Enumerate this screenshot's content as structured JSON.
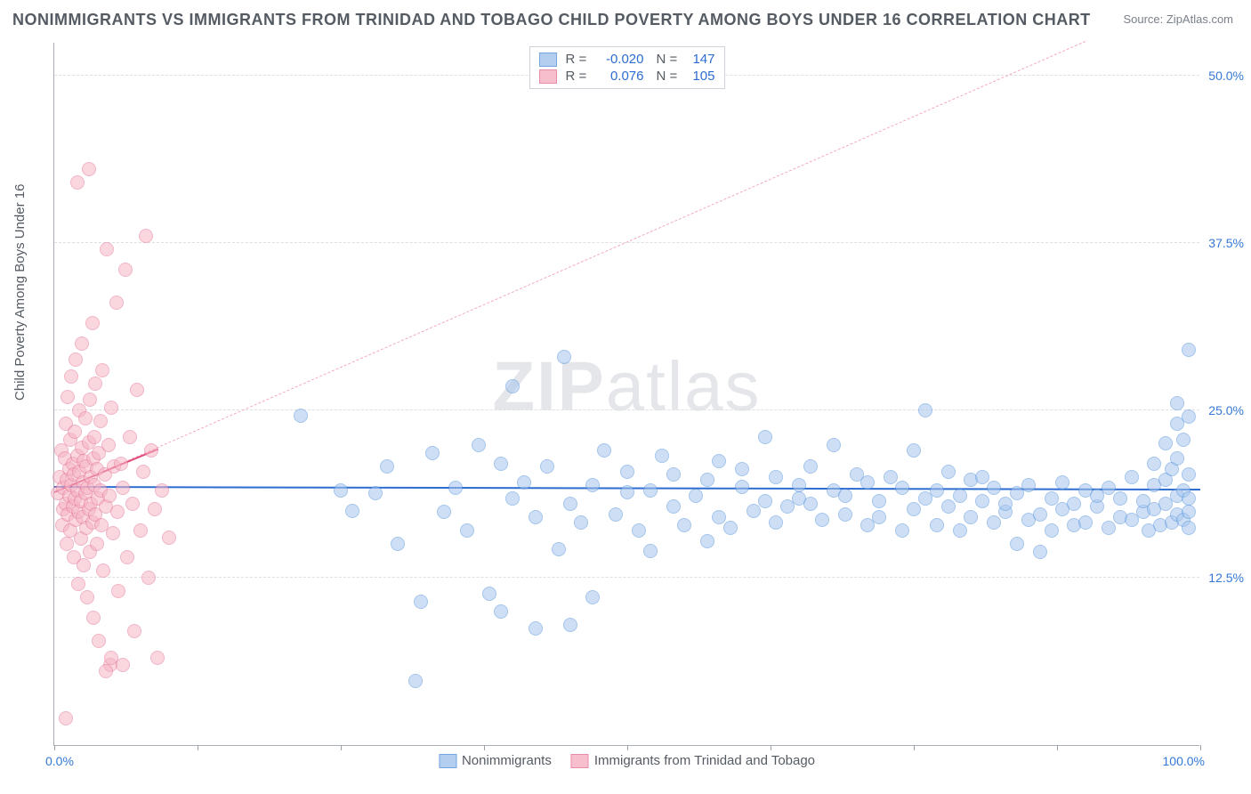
{
  "title": "NONIMMIGRANTS VS IMMIGRANTS FROM TRINIDAD AND TOBAGO CHILD POVERTY AMONG BOYS UNDER 16 CORRELATION CHART",
  "source": "Source: ZipAtlas.com",
  "ylabel": "Child Poverty Among Boys Under 16",
  "watermark_a": "ZIP",
  "watermark_b": "atlas",
  "chart": {
    "type": "scatter",
    "xlim": [
      0,
      100
    ],
    "ylim": [
      0,
      52.5
    ],
    "x_tick_positions": [
      0,
      12.5,
      25,
      37.5,
      50,
      62.5,
      75,
      87.5,
      100
    ],
    "y_ticks": [
      {
        "v": 12.5,
        "label": "12.5%"
      },
      {
        "v": 25.0,
        "label": "25.0%"
      },
      {
        "v": 37.5,
        "label": "37.5%"
      },
      {
        "v": 50.0,
        "label": "50.0%"
      }
    ],
    "x_label_min": "0.0%",
    "x_label_max": "100.0%",
    "background_color": "#ffffff",
    "grid_color": "#dcdfe4",
    "axis_color": "#a9aeb6"
  },
  "series": {
    "nonimmigrants": {
      "label": "Nonimmigrants",
      "R": "-0.020",
      "N": "147",
      "fill": "#a7c6ee",
      "stroke": "#5a96dd",
      "fill_opacity": 0.55,
      "marker_radius": 8,
      "reg_line": {
        "color": "#2d6cd1",
        "width": 2,
        "dash": false,
        "y_at_x0": 19.2,
        "y_at_x100": 19.0
      },
      "points": [
        [
          21.5,
          24.6
        ],
        [
          25,
          19.0
        ],
        [
          26,
          17.5
        ],
        [
          28,
          18.8
        ],
        [
          29,
          20.8
        ],
        [
          30,
          15.0
        ],
        [
          31.5,
          4.8
        ],
        [
          32,
          10.7
        ],
        [
          33,
          21.8
        ],
        [
          34,
          17.4
        ],
        [
          35,
          19.2
        ],
        [
          36,
          16.0
        ],
        [
          37,
          22.4
        ],
        [
          38,
          11.3
        ],
        [
          39,
          21.0
        ],
        [
          39,
          10.0
        ],
        [
          40,
          18.4
        ],
        [
          40,
          26.8
        ],
        [
          41,
          19.6
        ],
        [
          42,
          17.0
        ],
        [
          42,
          8.7
        ],
        [
          43,
          20.8
        ],
        [
          44,
          14.6
        ],
        [
          44.5,
          29.0
        ],
        [
          45,
          18.0
        ],
        [
          45,
          9.0
        ],
        [
          46,
          16.6
        ],
        [
          47,
          19.4
        ],
        [
          47,
          11.0
        ],
        [
          48,
          22.0
        ],
        [
          49,
          17.2
        ],
        [
          50,
          18.9
        ],
        [
          50,
          20.4
        ],
        [
          51,
          16.0
        ],
        [
          52,
          19.0
        ],
        [
          52,
          14.5
        ],
        [
          53,
          21.6
        ],
        [
          54,
          17.8
        ],
        [
          54,
          20.2
        ],
        [
          55,
          16.4
        ],
        [
          56,
          18.6
        ],
        [
          57,
          19.8
        ],
        [
          57,
          15.2
        ],
        [
          58,
          21.2
        ],
        [
          58,
          17.0
        ],
        [
          59,
          16.2
        ],
        [
          60,
          19.3
        ],
        [
          60,
          20.6
        ],
        [
          61,
          17.5
        ],
        [
          62,
          18.2
        ],
        [
          62,
          23.0
        ],
        [
          63,
          16.6
        ],
        [
          63,
          20.0
        ],
        [
          64,
          17.8
        ],
        [
          65,
          19.4
        ],
        [
          65,
          18.4
        ],
        [
          66,
          18.0
        ],
        [
          66,
          20.8
        ],
        [
          67,
          16.8
        ],
        [
          68,
          19.0
        ],
        [
          68,
          22.4
        ],
        [
          69,
          17.2
        ],
        [
          69,
          18.6
        ],
        [
          70,
          20.2
        ],
        [
          71,
          16.4
        ],
        [
          71,
          19.6
        ],
        [
          72,
          18.2
        ],
        [
          72,
          17.0
        ],
        [
          73,
          20.0
        ],
        [
          74,
          16.0
        ],
        [
          74,
          19.2
        ],
        [
          75,
          17.6
        ],
        [
          75,
          22.0
        ],
        [
          76,
          18.4
        ],
        [
          76,
          25.0
        ],
        [
          77,
          19.0
        ],
        [
          77,
          16.4
        ],
        [
          78,
          20.4
        ],
        [
          78,
          17.8
        ],
        [
          79,
          18.6
        ],
        [
          79,
          16.0
        ],
        [
          80,
          19.8
        ],
        [
          80,
          17.0
        ],
        [
          81,
          18.2
        ],
        [
          81,
          20.0
        ],
        [
          82,
          16.6
        ],
        [
          82,
          19.2
        ],
        [
          83,
          17.4
        ],
        [
          83,
          18.0
        ],
        [
          84,
          15.0
        ],
        [
          84,
          18.8
        ],
        [
          85,
          16.8
        ],
        [
          85,
          19.4
        ],
        [
          86,
          17.2
        ],
        [
          86,
          14.4
        ],
        [
          87,
          18.4
        ],
        [
          87,
          16.0
        ],
        [
          88,
          19.6
        ],
        [
          88,
          17.6
        ],
        [
          89,
          16.4
        ],
        [
          89,
          18.0
        ],
        [
          90,
          19.0
        ],
        [
          90,
          16.6
        ],
        [
          91,
          17.8
        ],
        [
          91,
          18.6
        ],
        [
          92,
          16.2
        ],
        [
          92,
          19.2
        ],
        [
          93,
          17.0
        ],
        [
          93,
          18.4
        ],
        [
          94,
          16.8
        ],
        [
          94,
          20.0
        ],
        [
          95,
          17.4
        ],
        [
          95,
          18.2
        ],
        [
          95.5,
          16.0
        ],
        [
          96,
          19.4
        ],
        [
          96,
          17.6
        ],
        [
          96,
          21.0
        ],
        [
          96.5,
          16.4
        ],
        [
          97,
          18.0
        ],
        [
          97,
          22.5
        ],
        [
          97,
          19.8
        ],
        [
          97.5,
          16.6
        ],
        [
          97.5,
          20.6
        ],
        [
          98,
          17.2
        ],
        [
          98,
          24.0
        ],
        [
          98,
          18.6
        ],
        [
          98,
          21.4
        ],
        [
          98,
          25.5
        ],
        [
          98.5,
          16.8
        ],
        [
          98.5,
          19.0
        ],
        [
          98.5,
          22.8
        ],
        [
          99,
          17.4
        ],
        [
          99,
          29.5
        ],
        [
          99,
          20.2
        ],
        [
          99,
          18.4
        ],
        [
          99,
          24.5
        ],
        [
          99,
          16.2
        ]
      ]
    },
    "immigrants": {
      "label": "Immigrants from Trinidad and Tobago",
      "R": "0.076",
      "N": "105",
      "fill": "#f6b5c6",
      "stroke": "#e57a9a",
      "fill_opacity": 0.55,
      "marker_radius": 8,
      "reg_line_solid": {
        "color": "#e14b7a",
        "width": 2.5,
        "x0": 0,
        "y0": 18.8,
        "x1": 9,
        "y1": 22.0
      },
      "reg_line_dash": {
        "color": "#f4aabf",
        "width": 1,
        "x0": 0,
        "y0": 18.8,
        "x1": 90,
        "y1": 52.5
      },
      "points": [
        [
          0.3,
          18.8
        ],
        [
          0.5,
          20.0
        ],
        [
          0.6,
          22.0
        ],
        [
          0.7,
          16.4
        ],
        [
          0.8,
          19.2
        ],
        [
          0.8,
          17.6
        ],
        [
          0.9,
          21.4
        ],
        [
          1.0,
          18.0
        ],
        [
          1.0,
          24.0
        ],
        [
          1.1,
          15.0
        ],
        [
          1.1,
          19.8
        ],
        [
          1.2,
          17.2
        ],
        [
          1.2,
          26.0
        ],
        [
          1.3,
          20.6
        ],
        [
          1.3,
          18.6
        ],
        [
          1.4,
          22.8
        ],
        [
          1.4,
          16.0
        ],
        [
          1.5,
          19.4
        ],
        [
          1.5,
          27.5
        ],
        [
          1.6,
          17.8
        ],
        [
          1.6,
          21.0
        ],
        [
          1.7,
          14.0
        ],
        [
          1.7,
          20.2
        ],
        [
          1.8,
          18.4
        ],
        [
          1.8,
          23.4
        ],
        [
          1.9,
          16.8
        ],
        [
          1.9,
          28.8
        ],
        [
          2.0,
          19.0
        ],
        [
          2.0,
          21.6
        ],
        [
          2.1,
          17.4
        ],
        [
          2.1,
          12.0
        ],
        [
          2.2,
          20.4
        ],
        [
          2.2,
          25.0
        ],
        [
          2.3,
          18.2
        ],
        [
          2.3,
          15.4
        ],
        [
          2.4,
          22.2
        ],
        [
          2.4,
          30.0
        ],
        [
          2.5,
          19.6
        ],
        [
          2.5,
          17.0
        ],
        [
          2.6,
          13.4
        ],
        [
          2.6,
          21.2
        ],
        [
          2.7,
          18.8
        ],
        [
          2.7,
          24.4
        ],
        [
          2.8,
          16.2
        ],
        [
          2.8,
          20.8
        ],
        [
          2.9,
          11.0
        ],
        [
          2.9,
          19.2
        ],
        [
          3.0,
          22.6
        ],
        [
          3.0,
          17.6
        ],
        [
          3.1,
          25.8
        ],
        [
          3.1,
          14.4
        ],
        [
          3.2,
          20.0
        ],
        [
          3.2,
          18.0
        ],
        [
          3.3,
          31.5
        ],
        [
          3.3,
          16.6
        ],
        [
          3.4,
          21.4
        ],
        [
          3.4,
          9.5
        ],
        [
          3.5,
          19.4
        ],
        [
          3.5,
          23.0
        ],
        [
          3.6,
          17.2
        ],
        [
          3.6,
          27.0
        ],
        [
          3.7,
          15.0
        ],
        [
          3.7,
          20.6
        ],
        [
          3.8,
          18.4
        ],
        [
          3.9,
          7.8
        ],
        [
          3.9,
          21.8
        ],
        [
          4.0,
          19.0
        ],
        [
          4.0,
          24.2
        ],
        [
          4.1,
          16.4
        ],
        [
          4.2,
          28.0
        ],
        [
          4.3,
          13.0
        ],
        [
          4.4,
          20.2
        ],
        [
          4.5,
          17.8
        ],
        [
          4.6,
          37.0
        ],
        [
          4.7,
          22.4
        ],
        [
          4.8,
          18.6
        ],
        [
          4.9,
          6.0
        ],
        [
          5.0,
          25.2
        ],
        [
          5.1,
          15.8
        ],
        [
          5.2,
          20.8
        ],
        [
          5.4,
          33.0
        ],
        [
          5.5,
          17.4
        ],
        [
          5.6,
          11.5
        ],
        [
          5.8,
          21.0
        ],
        [
          6.0,
          19.2
        ],
        [
          6.2,
          35.5
        ],
        [
          6.4,
          14.0
        ],
        [
          6.6,
          23.0
        ],
        [
          6.8,
          18.0
        ],
        [
          7.0,
          8.5
        ],
        [
          7.2,
          26.5
        ],
        [
          7.5,
          16.0
        ],
        [
          7.8,
          20.4
        ],
        [
          8.0,
          38.0
        ],
        [
          8.2,
          12.5
        ],
        [
          8.5,
          22.0
        ],
        [
          8.8,
          17.6
        ],
        [
          9.0,
          6.5
        ],
        [
          9.4,
          19.0
        ],
        [
          2.0,
          42.0
        ],
        [
          3.0,
          43.0
        ],
        [
          1.0,
          2.0
        ],
        [
          4.5,
          5.5
        ],
        [
          5.0,
          6.5
        ],
        [
          6.0,
          6.0
        ],
        [
          10.0,
          15.5
        ]
      ]
    }
  }
}
